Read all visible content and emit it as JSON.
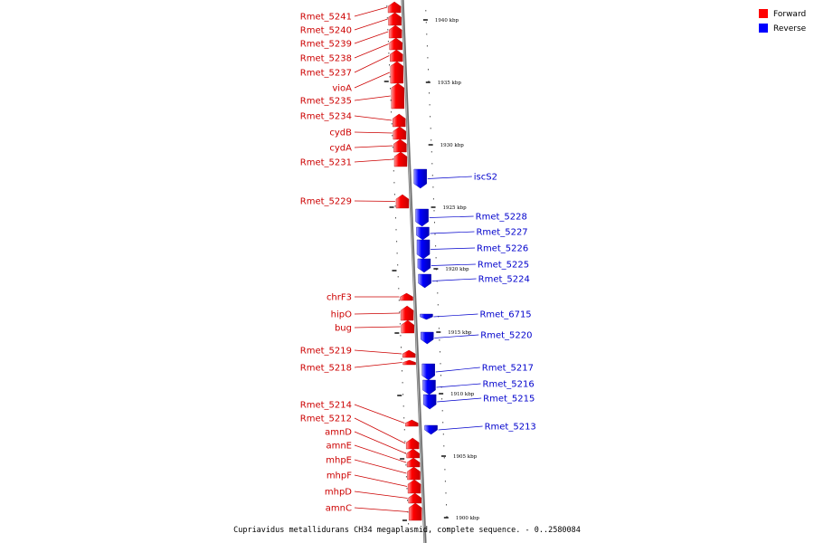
{
  "caption": "Cupriavidus metallidurans CH34 megaplasmid, complete sequence. - 0..2580084",
  "legend": [
    {
      "label": "Forward",
      "color": "#ff0000"
    },
    {
      "label": "Reverse",
      "color": "#0000ff"
    }
  ],
  "colors": {
    "forward": "#ff0000",
    "reverse": "#0000ff",
    "forward_text": "#cc0000",
    "reverse_text": "#0000cc",
    "backbone": "#808080"
  },
  "ticks": [
    {
      "label": "1940 kbp"
    },
    {
      "label": "1935 kbp"
    },
    {
      "label": "1930 kbp"
    },
    {
      "label": "1925 kbp"
    },
    {
      "label": "1920 kbp"
    },
    {
      "label": "1915 kbp"
    },
    {
      "label": "1910 kbp"
    },
    {
      "label": "1905 kbp"
    },
    {
      "label": "1900 kbp"
    }
  ],
  "forward_genes": [
    "Rmet_5241",
    "Rmet_5240",
    "Rmet_5239",
    "Rmet_5238",
    "Rmet_5237",
    "vioA",
    "Rmet_5235",
    "Rmet_5234",
    "cydB",
    "cydA",
    "Rmet_5231",
    "Rmet_5229",
    "chrF3",
    "hipO",
    "bug",
    "Rmet_5219",
    "Rmet_5218",
    "Rmet_5214",
    "Rmet_5212",
    "amnD",
    "amnE",
    "mhpE",
    "mhpF",
    "mhpD",
    "amnC"
  ],
  "reverse_genes": [
    "iscS2",
    "Rmet_5228",
    "Rmet_5227",
    "Rmet_5226",
    "Rmet_5225",
    "Rmet_5224",
    "Rmet_6715",
    "Rmet_5220",
    "Rmet_5217",
    "Rmet_5216",
    "Rmet_5215",
    "Rmet_5213"
  ]
}
